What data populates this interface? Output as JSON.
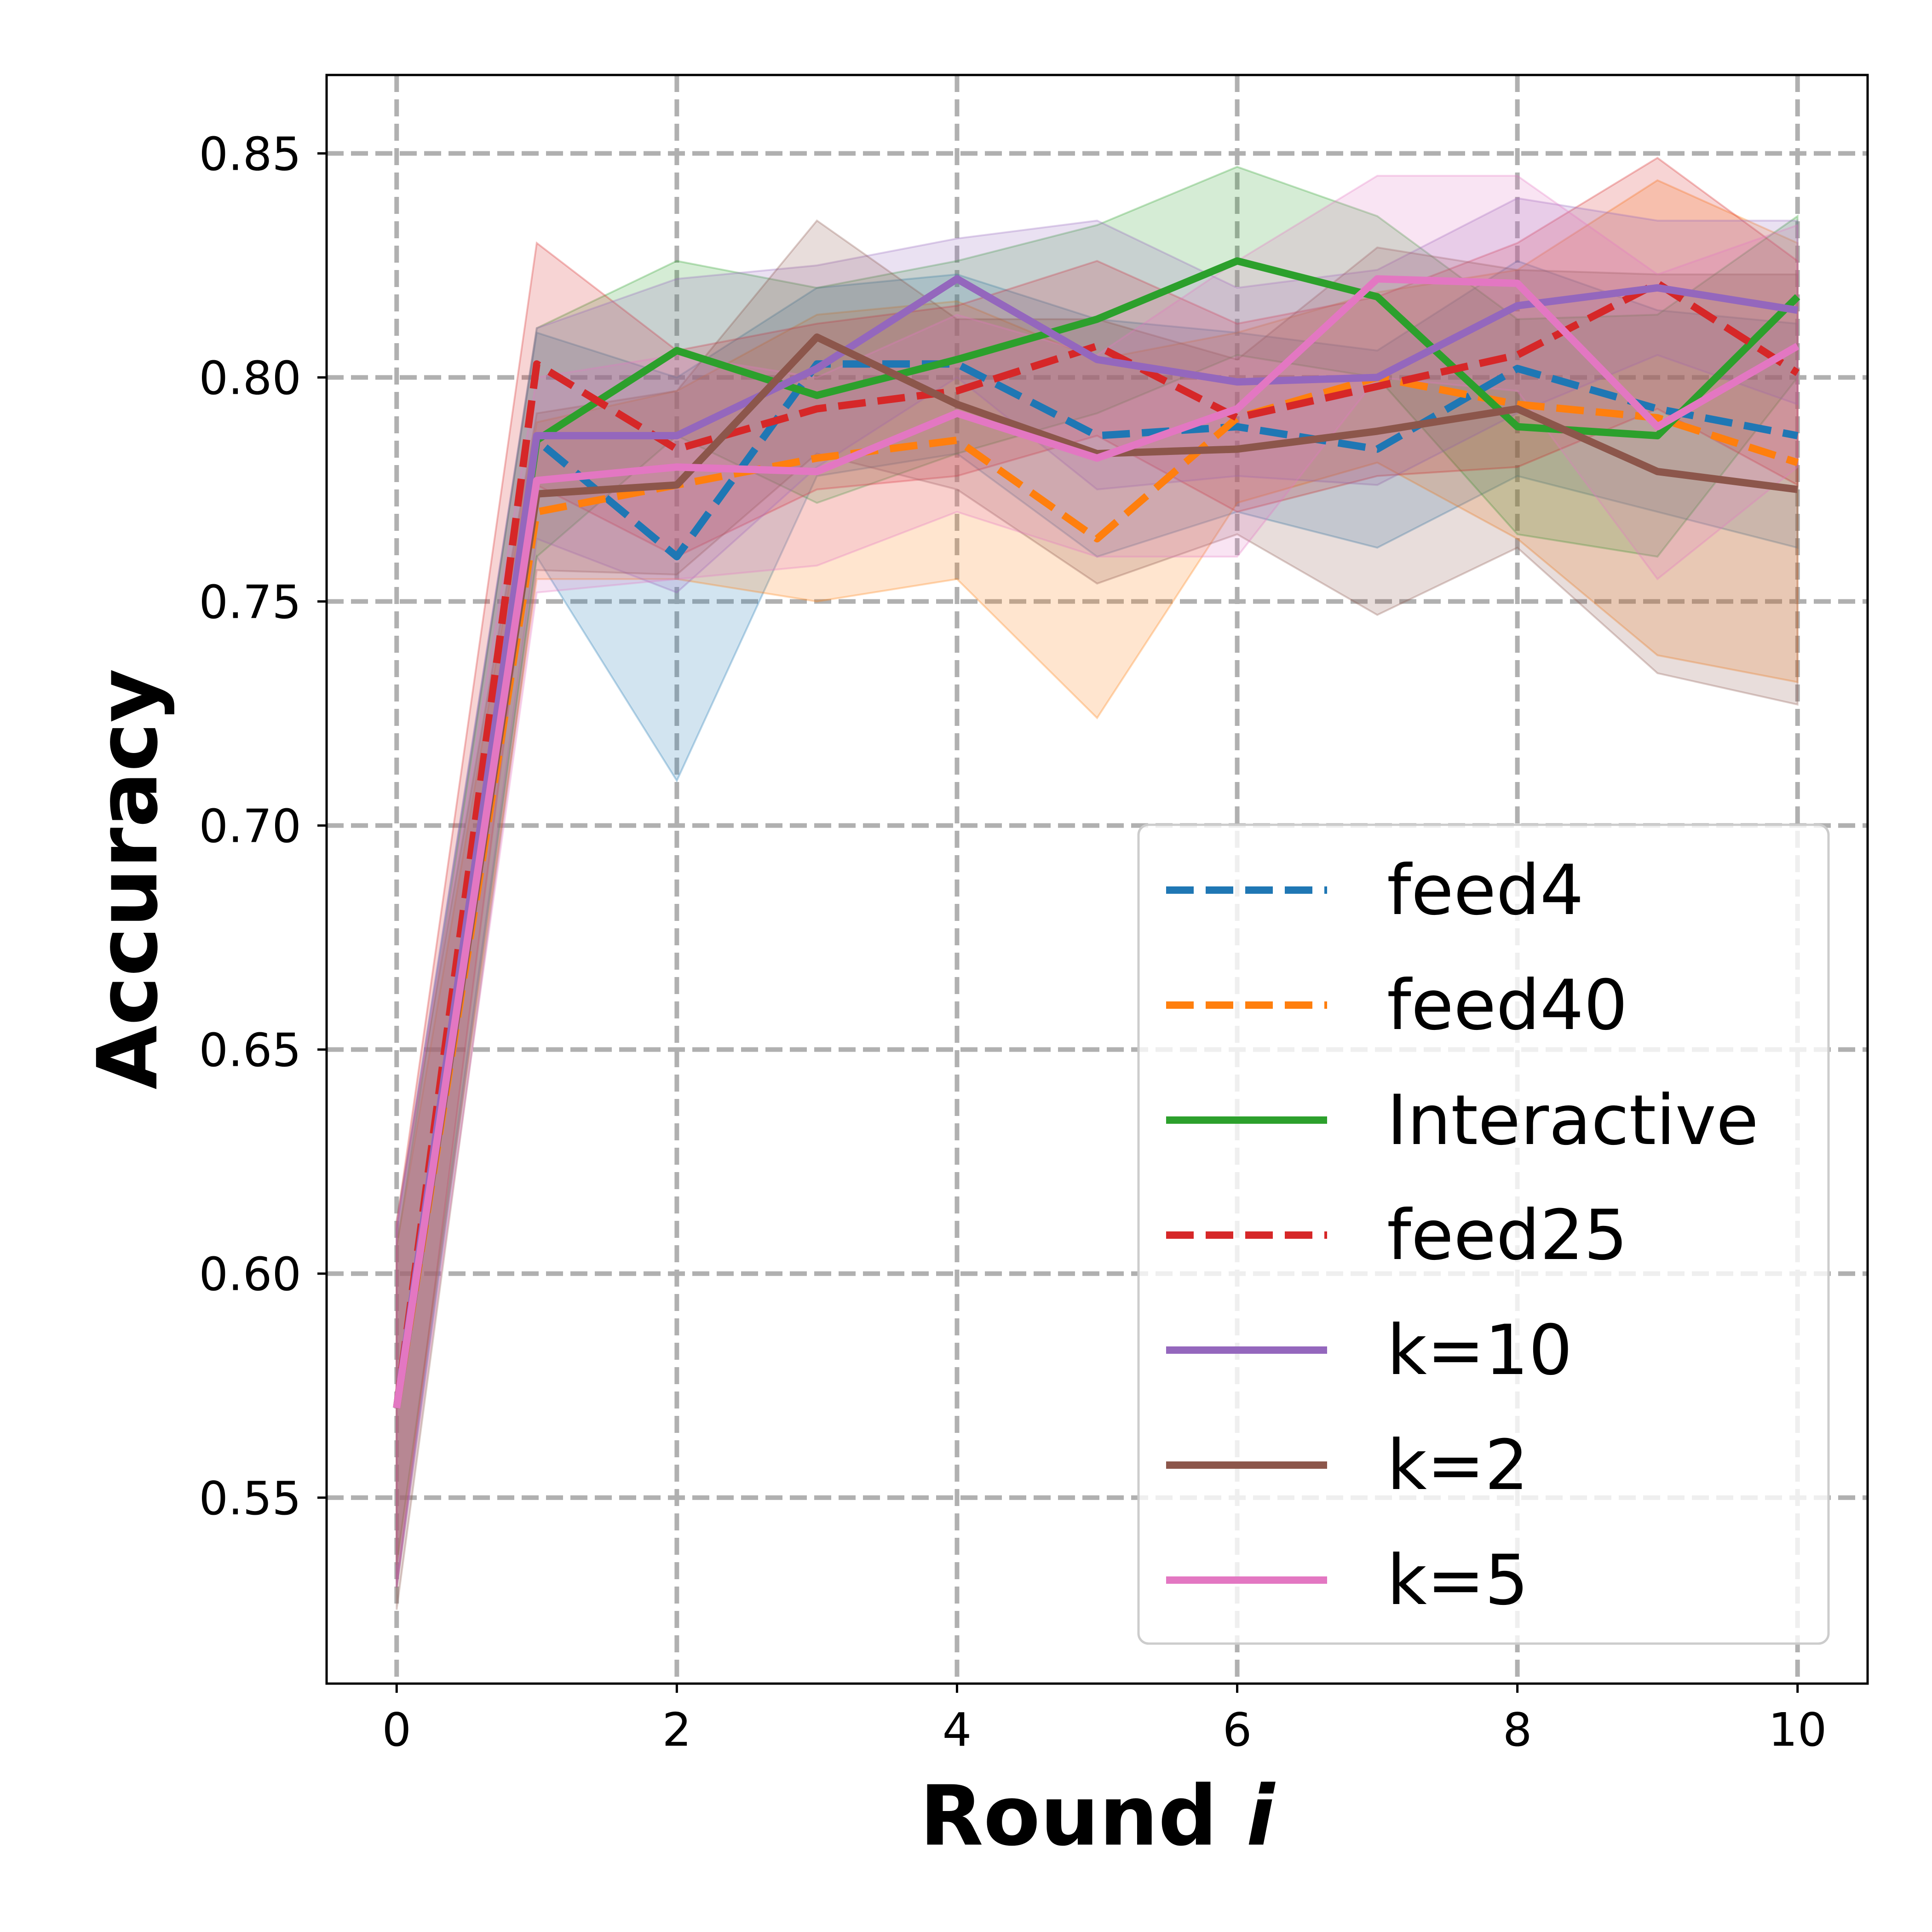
{
  "chart_data": {
    "type": "line",
    "xlabel": "Round ",
    "xlabel_italic": "i",
    "ylabel": "Accuracy",
    "xlim": [
      -0.5,
      10.5
    ],
    "ylim": [
      0.5085,
      0.8675
    ],
    "xticks": [
      0,
      2,
      4,
      6,
      8,
      10
    ],
    "xtick_labels": [
      "0",
      "2",
      "4",
      "6",
      "8",
      "10"
    ],
    "yticks": [
      0.55,
      0.6,
      0.65,
      0.7,
      0.75,
      0.8,
      0.85
    ],
    "ytick_labels": [
      "0.55",
      "0.60",
      "0.65",
      "0.70",
      "0.75",
      "0.80",
      "0.85"
    ],
    "grid": true,
    "legend_position": "lower-right",
    "x": [
      0,
      1,
      2,
      3,
      4,
      5,
      6,
      7,
      8,
      9,
      10
    ],
    "series": [
      {
        "name": "feed4",
        "color": "#1f77b4",
        "dashed": true,
        "values": [
          0.57,
          0.786,
          0.76,
          0.803,
          0.803,
          0.787,
          0.789,
          0.784,
          0.802,
          0.793,
          0.787
        ],
        "lower": [
          0.53,
          0.76,
          0.71,
          0.778,
          0.783,
          0.76,
          0.77,
          0.762,
          0.778,
          0.77,
          0.762
        ],
        "upper": [
          0.61,
          0.81,
          0.8,
          0.82,
          0.823,
          0.813,
          0.81,
          0.806,
          0.826,
          0.815,
          0.812
        ]
      },
      {
        "name": "feed40",
        "color": "#ff7f0e",
        "dashed": true,
        "values": [
          0.57,
          0.77,
          0.776,
          0.782,
          0.786,
          0.764,
          0.791,
          0.8,
          0.794,
          0.791,
          0.781
        ],
        "lower": [
          0.535,
          0.755,
          0.755,
          0.75,
          0.755,
          0.724,
          0.772,
          0.781,
          0.764,
          0.738,
          0.732
        ],
        "upper": [
          0.606,
          0.79,
          0.797,
          0.814,
          0.817,
          0.804,
          0.81,
          0.819,
          0.824,
          0.844,
          0.83
        ]
      },
      {
        "name": "Interactive",
        "color": "#2ca02c",
        "dashed": false,
        "values": [
          0.57,
          0.786,
          0.806,
          0.796,
          0.804,
          0.813,
          0.826,
          0.818,
          0.789,
          0.787,
          0.818
        ],
        "lower": [
          0.535,
          0.76,
          0.787,
          0.772,
          0.783,
          0.792,
          0.805,
          0.8,
          0.765,
          0.76,
          0.8
        ],
        "upper": [
          0.606,
          0.811,
          0.826,
          0.82,
          0.826,
          0.834,
          0.847,
          0.836,
          0.813,
          0.814,
          0.836
        ]
      },
      {
        "name": "feed25",
        "color": "#d62728",
        "dashed": true,
        "values": [
          0.57,
          0.803,
          0.784,
          0.793,
          0.797,
          0.807,
          0.791,
          0.798,
          0.805,
          0.821,
          0.801
        ],
        "lower": [
          0.53,
          0.776,
          0.76,
          0.775,
          0.778,
          0.787,
          0.77,
          0.778,
          0.78,
          0.793,
          0.776
        ],
        "upper": [
          0.611,
          0.83,
          0.806,
          0.812,
          0.816,
          0.826,
          0.812,
          0.818,
          0.83,
          0.849,
          0.826
        ]
      },
      {
        "name": "k=10",
        "color": "#9467bd",
        "dashed": false,
        "values": [
          0.57,
          0.787,
          0.787,
          0.802,
          0.822,
          0.804,
          0.799,
          0.8,
          0.816,
          0.82,
          0.815
        ],
        "lower": [
          0.53,
          0.764,
          0.752,
          0.78,
          0.8,
          0.775,
          0.778,
          0.776,
          0.792,
          0.805,
          0.794
        ],
        "upper": [
          0.61,
          0.811,
          0.822,
          0.825,
          0.831,
          0.835,
          0.82,
          0.824,
          0.84,
          0.835,
          0.835
        ]
      },
      {
        "name": "k=2",
        "color": "#8c564b",
        "dashed": false,
        "values": [
          0.57,
          0.774,
          0.776,
          0.809,
          0.794,
          0.783,
          0.784,
          0.788,
          0.793,
          0.779,
          0.775
        ],
        "lower": [
          0.525,
          0.757,
          0.756,
          0.783,
          0.775,
          0.754,
          0.765,
          0.747,
          0.762,
          0.734,
          0.727
        ],
        "upper": [
          0.612,
          0.792,
          0.797,
          0.835,
          0.813,
          0.813,
          0.804,
          0.829,
          0.824,
          0.823,
          0.823
        ]
      },
      {
        "name": "k=5",
        "color": "#e377c2",
        "dashed": false,
        "values": [
          0.57,
          0.777,
          0.78,
          0.779,
          0.792,
          0.782,
          0.793,
          0.822,
          0.821,
          0.789,
          0.807
        ],
        "lower": [
          0.53,
          0.752,
          0.755,
          0.758,
          0.77,
          0.76,
          0.76,
          0.8,
          0.797,
          0.755,
          0.78
        ],
        "upper": [
          0.611,
          0.8,
          0.805,
          0.8,
          0.814,
          0.805,
          0.826,
          0.845,
          0.845,
          0.823,
          0.834
        ]
      }
    ]
  }
}
